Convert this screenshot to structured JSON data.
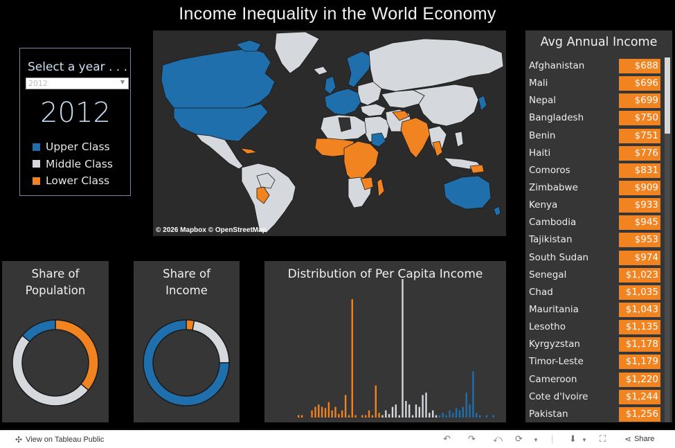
{
  "title": "Income Inequality in the World Economy",
  "selector": {
    "label": "Select a year . . .",
    "dropdown_value": "2012",
    "year": "2012",
    "legend": [
      {
        "label": "Upper Class",
        "color": "#1f6fad"
      },
      {
        "label": "Middle Class",
        "color": "#d5d8dc"
      },
      {
        "label": "Lower Class",
        "color": "#f28321"
      }
    ]
  },
  "map": {
    "attribution": "© 2026 Mapbox  © OpenStreetMap"
  },
  "panels": {
    "population": {
      "title_line1": "Share of",
      "title_line2": "Population"
    },
    "income": {
      "title_line1": "Share of",
      "title_line2": "Income"
    },
    "distribution": {
      "title": "Distribution of Per Capita Income"
    }
  },
  "avg_income": {
    "title": "Avg Annual Income",
    "rows": [
      {
        "country": "Afghanistan",
        "value": "$688"
      },
      {
        "country": "Mali",
        "value": "$696"
      },
      {
        "country": "Nepal",
        "value": "$699"
      },
      {
        "country": "Bangladesh",
        "value": "$750"
      },
      {
        "country": "Benin",
        "value": "$751"
      },
      {
        "country": "Haiti",
        "value": "$776"
      },
      {
        "country": "Comoros",
        "value": "$831"
      },
      {
        "country": "Zimbabwe",
        "value": "$909"
      },
      {
        "country": "Kenya",
        "value": "$933"
      },
      {
        "country": "Cambodia",
        "value": "$945"
      },
      {
        "country": "Tajikistan",
        "value": "$953"
      },
      {
        "country": "South Sudan",
        "value": "$974"
      },
      {
        "country": "Senegal",
        "value": "$1,023"
      },
      {
        "country": "Chad",
        "value": "$1,035"
      },
      {
        "country": "Mauritania",
        "value": "$1,043"
      },
      {
        "country": "Lesotho",
        "value": "$1,135"
      },
      {
        "country": "Kyrgyzstan",
        "value": "$1,178"
      },
      {
        "country": "Timor-Leste",
        "value": "$1,179"
      },
      {
        "country": "Cameroon",
        "value": "$1,220"
      },
      {
        "country": "Cote d'Ivoire",
        "value": "$1,244"
      },
      {
        "country": "Pakistan",
        "value": "$1,256"
      }
    ]
  },
  "footer": {
    "view_label": "View on Tableau Public",
    "share_label": "Share"
  },
  "chart_data": [
    {
      "type": "pie",
      "categories": [
        "Lower Class",
        "Middle Class",
        "Upper Class"
      ],
      "values": [
        36,
        50,
        14
      ],
      "colors": [
        "#f28321",
        "#d5d8dc",
        "#1f6fad"
      ]
    },
    {
      "type": "pie",
      "categories": [
        "Lower Class",
        "Middle Class",
        "Upper Class"
      ],
      "values": [
        3,
        22,
        75
      ],
      "colors": [
        "#f28321",
        "#d5d8dc",
        "#1f6fad"
      ]
    },
    {
      "type": "bar",
      "bars": [
        {
          "v": 2,
          "c": "L"
        },
        {
          "v": 2,
          "c": "L"
        },
        {
          "v": 0,
          "c": "L"
        },
        {
          "v": 0,
          "c": "L"
        },
        {
          "v": 6,
          "c": "L"
        },
        {
          "v": 9,
          "c": "L"
        },
        {
          "v": 11,
          "c": "L"
        },
        {
          "v": 9,
          "c": "L"
        },
        {
          "v": 8,
          "c": "L"
        },
        {
          "v": 13,
          "c": "L"
        },
        {
          "v": 6,
          "c": "L"
        },
        {
          "v": 9,
          "c": "L"
        },
        {
          "v": 3,
          "c": "L"
        },
        {
          "v": 6,
          "c": "L"
        },
        {
          "v": 19,
          "c": "L"
        },
        {
          "v": 2,
          "c": "L"
        },
        {
          "v": 100,
          "c": "L"
        },
        {
          "v": 2,
          "c": "L"
        },
        {
          "v": 0,
          "c": "L"
        },
        {
          "v": 2,
          "c": "L"
        },
        {
          "v": 2,
          "c": "L"
        },
        {
          "v": 6,
          "c": "L"
        },
        {
          "v": 2,
          "c": "L"
        },
        {
          "v": 27,
          "c": "L"
        },
        {
          "v": 4,
          "c": "L"
        },
        {
          "v": 2,
          "c": "M"
        },
        {
          "v": 6,
          "c": "M"
        },
        {
          "v": 3,
          "c": "M"
        },
        {
          "v": 9,
          "c": "M"
        },
        {
          "v": 11,
          "c": "M"
        },
        {
          "v": 2,
          "c": "M"
        },
        {
          "v": 117,
          "c": "M"
        },
        {
          "v": 14,
          "c": "M"
        },
        {
          "v": 11,
          "c": "M"
        },
        {
          "v": 2,
          "c": "M"
        },
        {
          "v": 11,
          "c": "M"
        },
        {
          "v": 9,
          "c": "M"
        },
        {
          "v": 19,
          "c": "M"
        },
        {
          "v": 21,
          "c": "M"
        },
        {
          "v": 4,
          "c": "M"
        },
        {
          "v": 6,
          "c": "M"
        },
        {
          "v": 2,
          "c": "M"
        },
        {
          "v": 2,
          "c": "U"
        },
        {
          "v": 4,
          "c": "U"
        },
        {
          "v": 2,
          "c": "U"
        },
        {
          "v": 6,
          "c": "U"
        },
        {
          "v": 4,
          "c": "U"
        },
        {
          "v": 8,
          "c": "U"
        },
        {
          "v": 6,
          "c": "U"
        },
        {
          "v": 9,
          "c": "U"
        },
        {
          "v": 21,
          "c": "U"
        },
        {
          "v": 11,
          "c": "U"
        },
        {
          "v": 39,
          "c": "U"
        },
        {
          "v": 4,
          "c": "U"
        },
        {
          "v": 2,
          "c": "U"
        },
        {
          "v": 0,
          "c": "U"
        },
        {
          "v": 2,
          "c": "U"
        },
        {
          "v": 0,
          "c": "U"
        },
        {
          "v": 2,
          "c": "U"
        }
      ]
    }
  ]
}
